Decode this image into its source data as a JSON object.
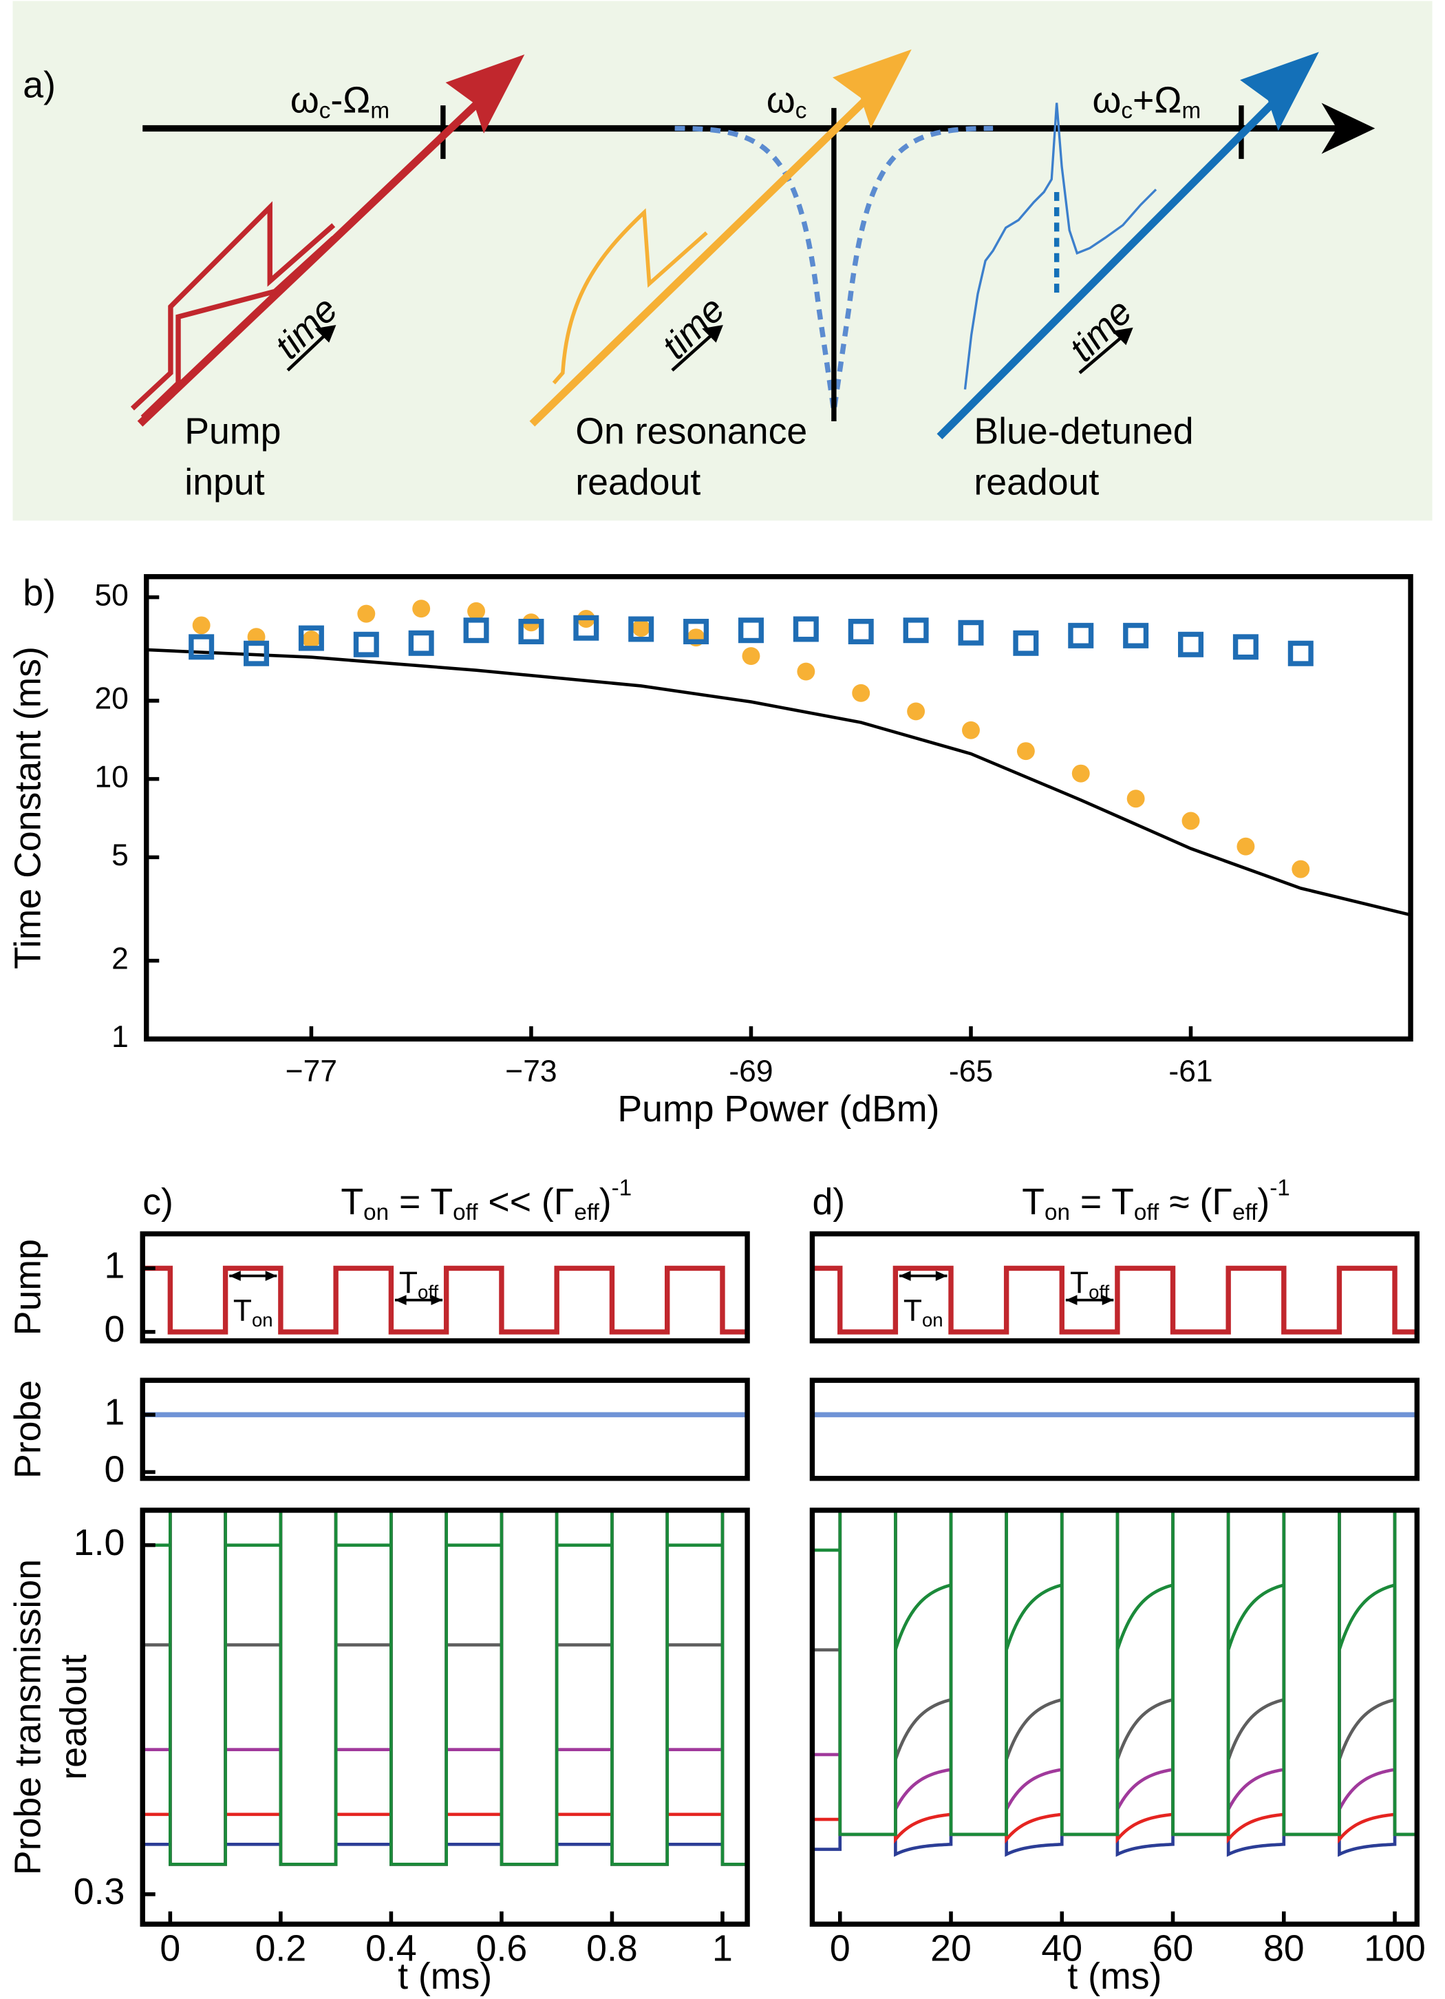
{
  "panel_a": {
    "label": "a)",
    "markers": [
      {
        "runs": [
          {
            "text": "ω"
          },
          {
            "text": "c",
            "sub": true
          },
          {
            "text": "-Ω"
          },
          {
            "text": "m",
            "sub": true
          }
        ]
      },
      {
        "runs": [
          {
            "text": "ω"
          },
          {
            "text": "c",
            "sub": true
          }
        ]
      },
      {
        "runs": [
          {
            "text": "ω"
          },
          {
            "text": "c",
            "sub": true
          },
          {
            "text": "+Ω"
          },
          {
            "text": "m",
            "sub": true
          }
        ]
      }
    ],
    "time_labels": [
      "time",
      "time",
      "time"
    ],
    "arrows": [
      {
        "lines": [
          "Pump",
          "input"
        ]
      },
      {
        "lines": [
          "On resonance",
          "readout"
        ]
      },
      {
        "lines": [
          "Blue-detuned",
          "readout"
        ]
      }
    ]
  },
  "chart_data": [
    {
      "type": "scatter",
      "panel": "b)",
      "xlabel": "Pump Power (dBm)",
      "ylabel": "Time Constant (ms)",
      "log_y": true,
      "xlim": [
        -80,
        -57
      ],
      "ylim": [
        1,
        60
      ],
      "xticks": [
        {
          "value": -77,
          "label": "−77"
        },
        {
          "value": -73,
          "label": "−73"
        },
        -69,
        -65,
        -61
      ],
      "yticks": [
        1,
        2,
        5,
        10,
        20,
        50
      ],
      "x": [
        -79,
        -78,
        -77,
        -76,
        -75,
        -74,
        -73,
        -72,
        -71,
        -70,
        -69,
        -68,
        -67,
        -66,
        -65,
        -64,
        -63,
        -62,
        -61,
        -60,
        -59
      ],
      "series": [
        {
          "marker": "circle",
          "color": "#f7b135",
          "values": [
            39,
            35.2,
            34.4,
            43.2,
            45.2,
            44.2,
            40,
            41.3,
            38.1,
            35,
            29.7,
            25.9,
            21.4,
            18.2,
            15.4,
            12.8,
            10.5,
            8.4,
            6.9,
            5.5,
            4.5
          ]
        },
        {
          "marker": "square",
          "color": "#1f6db4",
          "values": [
            32.2,
            30.4,
            34.8,
            32.9,
            33.3,
            37.3,
            36.9,
            38.1,
            37.7,
            36.9,
            37.3,
            37.7,
            36.9,
            37.3,
            36.5,
            33.3,
            35.6,
            35.6,
            32.9,
            32.2,
            30.4
          ]
        }
      ],
      "fit": {
        "color": "#000000",
        "x": [
          -80,
          -77,
          -74,
          -71,
          -69,
          -67,
          -65,
          -63,
          -61,
          -59,
          -57
        ],
        "values": [
          31.4,
          29.4,
          26.2,
          22.8,
          19.8,
          16.5,
          12.5,
          8.3,
          5.4,
          3.8,
          3.0
        ]
      }
    },
    {
      "type": "step",
      "panel": "c)",
      "title_runs": [
        {
          "text": "T"
        },
        {
          "text": "on",
          "sub": true
        },
        {
          "text": " = T"
        },
        {
          "text": "off",
          "sub": true
        },
        {
          "text": " << (Γ"
        },
        {
          "text": "eff",
          "sub": true
        },
        {
          "text": ")"
        },
        {
          "text": "-1",
          "sup": true
        }
      ],
      "ylabel": "Pump",
      "xlim": [
        -0.05,
        1.045
      ],
      "ylim": [
        -0.14,
        1.54
      ],
      "yticks": [
        0,
        1
      ],
      "color": "#c1272d",
      "x": [
        -0.05,
        0,
        0.1,
        0.2,
        0.3,
        0.4,
        0.5,
        0.6,
        0.7,
        0.8,
        0.9,
        1.0
      ],
      "values": [
        1,
        0,
        1,
        0,
        1,
        0,
        1,
        0,
        1,
        0,
        1,
        0
      ],
      "annotations": [
        {
          "runs": [
            {
              "text": "T"
            },
            {
              "text": "on",
              "sub": true
            }
          ]
        },
        {
          "runs": [
            {
              "text": "T"
            },
            {
              "text": "off",
              "sub": true
            }
          ]
        }
      ]
    },
    {
      "type": "level",
      "ylabel": "Probe",
      "xlim": [
        -0.05,
        1.045
      ],
      "ylim": [
        -0.11,
        1.6
      ],
      "yticks": [
        0,
        1
      ],
      "color": "#6f93d6",
      "value": 1
    },
    {
      "type": "pulse",
      "ylabel_lines": [
        "Probe transmission",
        "readout"
      ],
      "xlabel": "t (ms)",
      "xlim": [
        -0.05,
        1.045
      ],
      "ylim": [
        0.24,
        1.07
      ],
      "xticks": [
        0,
        0.2,
        0.4,
        0.6,
        0.8,
        1
      ],
      "yticks": [
        {
          "value": 1,
          "label": "1.0"
        },
        0.3
      ],
      "low": 0.36,
      "series": [
        {
          "color": "#2b3d96",
          "level": 0.4
        },
        {
          "color": "#e52420",
          "level": 0.46
        },
        {
          "color": "#a0399b",
          "level": 0.59
        },
        {
          "color": "#5e5e5e",
          "level": 0.8
        },
        {
          "color": "#1b8a3a",
          "level": 1.0
        }
      ]
    },
    {
      "type": "step",
      "panel": "d)",
      "title_runs": [
        {
          "text": "T"
        },
        {
          "text": "on",
          "sub": true
        },
        {
          "text": " = T"
        },
        {
          "text": "off",
          "sub": true
        },
        {
          "text": " ≈ (Γ"
        },
        {
          "text": "eff",
          "sub": true
        },
        {
          "text": ")"
        },
        {
          "text": "-1",
          "sup": true
        }
      ],
      "xlim": [
        -5,
        104
      ],
      "ylim": [
        -0.14,
        1.54
      ],
      "color": "#c1272d",
      "x": [
        -5,
        0,
        10,
        20,
        30,
        40,
        50,
        60,
        70,
        80,
        90,
        100
      ],
      "values": [
        1,
        0,
        1,
        0,
        1,
        0,
        1,
        0,
        1,
        0,
        1,
        0
      ],
      "annotations": [
        {
          "runs": [
            {
              "text": "T"
            },
            {
              "text": "on",
              "sub": true
            }
          ]
        },
        {
          "runs": [
            {
              "text": "T"
            },
            {
              "text": "off",
              "sub": true
            }
          ]
        }
      ]
    },
    {
      "type": "level",
      "xlim": [
        -5,
        104
      ],
      "ylim": [
        -0.11,
        1.6
      ],
      "color": "#6f93d6",
      "value": 1
    },
    {
      "type": "pulse",
      "xlabel": "t (ms)",
      "xlim": [
        -5,
        104
      ],
      "ylim": [
        0.24,
        1.07
      ],
      "xticks": [
        0,
        20,
        40,
        60,
        80,
        100
      ],
      "low": 0.42,
      "series": [
        {
          "color": "#2b3d96",
          "initial": 0.39,
          "start": 0.38,
          "end": 0.4
        },
        {
          "color": "#e52420",
          "initial": 0.45,
          "start": 0.41,
          "end": 0.46
        },
        {
          "color": "#a0399b",
          "initial": 0.58,
          "start": 0.47,
          "end": 0.55
        },
        {
          "color": "#5e5e5e",
          "initial": 0.79,
          "start": 0.57,
          "end": 0.69
        },
        {
          "color": "#1b8a3a",
          "initial": 0.99,
          "start": 0.79,
          "end": 0.92
        }
      ]
    }
  ]
}
